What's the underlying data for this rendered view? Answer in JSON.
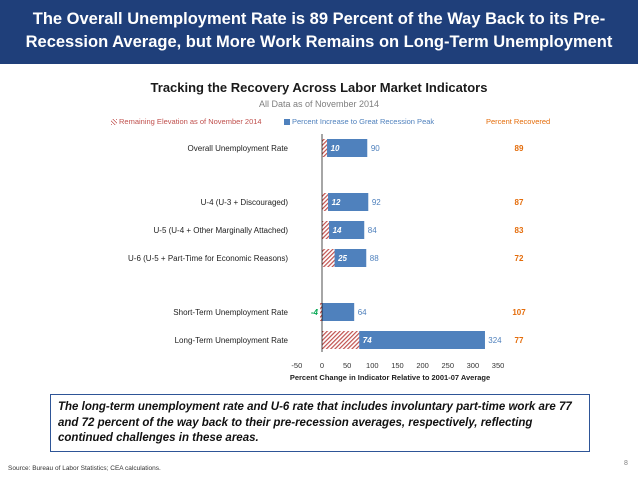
{
  "slide": {
    "title_line1": "The Overall Unemployment Rate is 89 Percent of the Way Back to its Pre-",
    "title_line2": "Recession Average, but More Work Remains on Long-Term Unemployment",
    "callout": "The long-term unemployment rate and U-6 rate that includes involuntary part-time work are 77 and 72 percent of the way back to their pre-recession averages, respectively, reflecting continued challenges in these areas.",
    "source": "Source: Bureau of Labor Statistics; CEA calculations.",
    "page_number": "8"
  },
  "chart_data": {
    "type": "bar",
    "orientation": "horizontal",
    "stacked": "overlay",
    "title": "Tracking the Recovery Across Labor Market Indicators",
    "subtitle": "All Data as of November 2014",
    "xlabel": "Percent Change in Indicator Relative to 2001-07 Average",
    "xlim": [
      -50,
      350
    ],
    "xticks": [
      -50,
      0,
      50,
      100,
      150,
      200,
      250,
      300,
      350
    ],
    "grid": false,
    "legend_position": "top",
    "legend": {
      "remaining": "Remaining Elevation as of November 2014",
      "peak": "Percent Increase to Great Recession Peak",
      "recovered": "Percent Recovered"
    },
    "categories": [
      "Overall Unemployment Rate",
      "U-4 (U-3 + Discouraged)",
      "U-5 (U-4 + Other Marginally Attached)",
      "U-6 (U-5 + Part-Time for Economic Reasons)",
      "Short-Term Unemployment Rate",
      "Long-Term Unemployment Rate"
    ],
    "series": [
      {
        "name": "Remaining Elevation as of November 2014",
        "values": [
          10,
          12,
          14,
          25,
          -4,
          74
        ]
      },
      {
        "name": "Percent Increase to Great Recession Peak",
        "values": [
          90,
          92,
          84,
          88,
          64,
          324
        ]
      },
      {
        "name": "Percent Recovered",
        "values": [
          89,
          87,
          83,
          72,
          107,
          77
        ]
      }
    ],
    "colors": {
      "peak_bar": "#4f81bd",
      "hatch": "#c0504d",
      "recovered_text": "#e46c0a",
      "negative_text": "#00a650"
    }
  }
}
